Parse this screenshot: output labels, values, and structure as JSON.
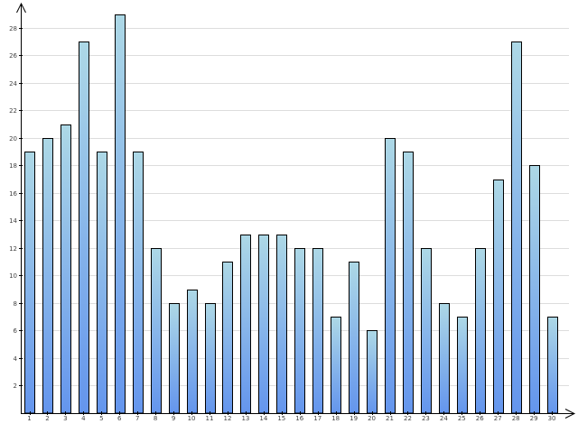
{
  "chart_data": {
    "type": "bar",
    "title": "",
    "xlabel": "",
    "ylabel": "",
    "categories": [
      "1",
      "2",
      "3",
      "4",
      "5",
      "6",
      "7",
      "8",
      "9",
      "10",
      "11",
      "12",
      "13",
      "14",
      "15",
      "16",
      "17",
      "18",
      "19",
      "20",
      "21",
      "22",
      "23",
      "24",
      "25",
      "26",
      "27",
      "28",
      "29",
      "30"
    ],
    "values": [
      19,
      20,
      21,
      27,
      19,
      29,
      19,
      12,
      8,
      9,
      8,
      11,
      13,
      13,
      13,
      12,
      12,
      7,
      11,
      6,
      20,
      19,
      12,
      8,
      7,
      12,
      17,
      27,
      18,
      7
    ],
    "ylim": [
      0,
      30
    ],
    "yticks": [
      2,
      4,
      6,
      8,
      10,
      12,
      14,
      16,
      18,
      20,
      22,
      24,
      26,
      28
    ],
    "ytick_labels": [
      "2",
      "4",
      "6",
      "8",
      "10",
      "12",
      "14",
      "16",
      "18",
      "20",
      "22",
      "24",
      "26",
      "28"
    ],
    "grid": true,
    "legend": "none",
    "colors": {
      "bar_top": "#add8e6",
      "bar_bottom": "#6495ed",
      "bar_outline": "#000000",
      "grid": "#dddddd",
      "axis": "#000000",
      "tick_text": "#444444"
    }
  }
}
